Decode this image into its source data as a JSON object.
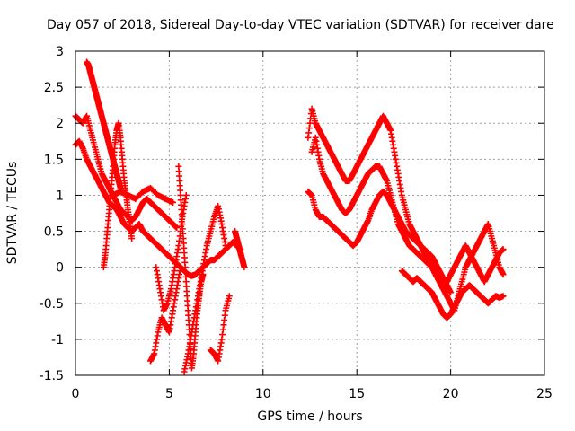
{
  "chart_data": {
    "type": "scatter",
    "title": "Day 057 of 2018, Sidereal Day-to-day VTEC variation (SDTVAR) for receiver dare",
    "xlabel": "GPS time / hours",
    "ylabel": "SDTVAR / TECUs",
    "xlim": [
      0,
      25
    ],
    "ylim": [
      -1.5,
      3
    ],
    "xticks": [
      "0",
      "5",
      "10",
      "15",
      "20",
      "25"
    ],
    "yticks": [
      "-1.5",
      "-1",
      "-0.5",
      "0",
      "0.5",
      "1",
      "1.5",
      "2",
      "2.5",
      "3"
    ],
    "grid": true,
    "legend": "none",
    "marker": "+",
    "color": "#ff0000",
    "series": [
      {
        "x": [
          0.0,
          0.2,
          0.4,
          0.6,
          0.8,
          1.0,
          1.2,
          1.4,
          1.6,
          1.8,
          2.0,
          2.2,
          2.4,
          2.6,
          2.8,
          3.0,
          3.2,
          3.4,
          3.6,
          3.8,
          4.0,
          4.2,
          4.4,
          4.6,
          4.8,
          5.0,
          5.2,
          5.4,
          5.6,
          5.8,
          6.0,
          6.2,
          6.4,
          6.6,
          6.8,
          7.0,
          7.2,
          7.4,
          7.6,
          7.8,
          8.0,
          8.2,
          8.4,
          8.6,
          8.8
        ],
        "y": [
          1.7,
          1.75,
          1.65,
          1.5,
          1.4,
          1.3,
          1.2,
          1.1,
          1.0,
          0.9,
          0.85,
          0.8,
          0.7,
          0.6,
          0.55,
          0.5,
          0.55,
          0.6,
          0.5,
          0.45,
          0.4,
          0.35,
          0.3,
          0.25,
          0.2,
          0.15,
          0.1,
          0.05,
          0.0,
          -0.05,
          -0.1,
          -0.12,
          -0.1,
          -0.05,
          0.0,
          0.05,
          0.1,
          0.1,
          0.15,
          0.2,
          0.25,
          0.3,
          0.35,
          0.3,
          0.25
        ]
      },
      {
        "x": [
          0.0,
          0.2,
          0.4,
          0.6,
          0.8,
          1.0,
          1.2,
          1.4,
          1.6,
          1.8,
          2.0,
          2.2,
          2.4,
          2.6,
          2.8,
          3.0,
          3.2,
          3.4,
          3.6,
          3.8,
          4.0,
          4.2,
          4.4,
          4.6,
          4.8,
          5.0,
          5.2,
          5.4
        ],
        "y": [
          2.1,
          2.05,
          2.0,
          2.1,
          1.9,
          1.7,
          1.5,
          1.3,
          1.2,
          1.1,
          1.0,
          0.9,
          0.8,
          0.75,
          0.7,
          0.65,
          0.7,
          0.8,
          0.9,
          0.95,
          0.9,
          0.85,
          0.8,
          0.75,
          0.7,
          0.65,
          0.6,
          0.55
        ]
      },
      {
        "x": [
          0.6,
          0.7,
          0.8,
          0.9,
          1.0,
          1.1,
          1.2,
          1.3,
          1.4,
          1.5,
          1.6,
          1.7,
          1.8,
          1.9,
          2.0,
          2.1,
          2.2,
          2.3,
          2.4
        ],
        "y": [
          2.85,
          2.8,
          2.7,
          2.6,
          2.5,
          2.4,
          2.3,
          2.2,
          2.1,
          2.0,
          1.9,
          1.8,
          1.7,
          1.6,
          1.5,
          1.4,
          1.3,
          1.2,
          1.1
        ]
      },
      {
        "x": [
          1.5,
          1.6,
          1.7,
          1.8,
          1.9,
          2.0,
          2.1,
          2.2,
          2.3,
          2.4,
          2.5,
          2.6,
          2.7,
          2.8,
          2.9,
          3.0
        ],
        "y": [
          0.0,
          0.2,
          0.5,
          0.8,
          1.1,
          1.4,
          1.7,
          1.9,
          2.0,
          1.8,
          1.5,
          1.2,
          1.0,
          0.8,
          0.6,
          0.4
        ]
      },
      {
        "x": [
          2.0,
          2.4,
          2.8,
          3.2,
          3.6,
          4.0,
          4.4,
          4.8,
          5.2
        ],
        "y": [
          1.0,
          1.05,
          1.0,
          0.95,
          1.05,
          1.1,
          1.0,
          0.95,
          0.9
        ]
      },
      {
        "x": [
          4.0,
          4.2,
          4.4,
          4.6,
          4.8,
          5.0,
          5.2,
          5.4,
          5.6
        ],
        "y": [
          -1.3,
          -1.2,
          -0.9,
          -0.7,
          -0.8,
          -0.9,
          -0.6,
          -0.3,
          0.0
        ]
      },
      {
        "x": [
          4.3,
          4.5,
          4.7,
          4.9,
          5.1,
          5.3,
          5.5,
          5.7,
          5.9
        ],
        "y": [
          0.0,
          -0.3,
          -0.6,
          -0.5,
          -0.3,
          0.0,
          0.3,
          0.7,
          1.0
        ]
      },
      {
        "x": [
          5.5,
          5.6,
          5.7,
          5.8,
          5.9,
          6.0,
          6.1,
          6.2,
          6.3,
          6.4,
          6.5,
          6.6,
          6.7,
          6.8
        ],
        "y": [
          1.4,
          1.0,
          0.6,
          0.2,
          -0.2,
          -0.6,
          -1.0,
          -1.4,
          -1.2,
          -0.9,
          -0.6,
          -0.4,
          -0.2,
          -0.1
        ]
      },
      {
        "x": [
          5.8,
          6.0,
          6.2,
          6.4,
          6.6,
          6.8,
          7.0,
          7.2,
          7.4,
          7.6,
          7.8,
          8.0
        ],
        "y": [
          -1.45,
          -1.2,
          -0.9,
          -0.6,
          -0.3,
          0.0,
          0.3,
          0.5,
          0.7,
          0.85,
          0.6,
          0.3
        ]
      },
      {
        "x": [
          7.2,
          7.4,
          7.6,
          7.8,
          8.0,
          8.2
        ],
        "y": [
          -1.15,
          -1.2,
          -1.3,
          -1.0,
          -0.6,
          -0.4
        ]
      },
      {
        "x": [
          8.5,
          8.6,
          8.7,
          8.8,
          8.9,
          9.0
        ],
        "y": [
          0.5,
          0.4,
          0.3,
          0.2,
          0.1,
          0.0
        ]
      },
      {
        "x": [
          12.4,
          12.6,
          12.8,
          13.0,
          13.2,
          13.4,
          13.6,
          13.8,
          14.0,
          14.2,
          14.4,
          14.6,
          14.8,
          15.0,
          15.2,
          15.4,
          15.6,
          15.8,
          16.0,
          16.2,
          16.4,
          16.6,
          16.8,
          17.0,
          17.2,
          17.4,
          17.6,
          17.8,
          18.0,
          18.2,
          18.4,
          18.6,
          18.8,
          19.0,
          19.2,
          19.4,
          19.6,
          19.8,
          20.0,
          20.2,
          20.4,
          20.6,
          20.8,
          21.0,
          21.2,
          21.4,
          21.6,
          21.8,
          22.0,
          22.2,
          22.4,
          22.6,
          22.8
        ],
        "y": [
          1.8,
          2.2,
          2.0,
          1.9,
          1.8,
          1.7,
          1.6,
          1.5,
          1.4,
          1.3,
          1.2,
          1.2,
          1.3,
          1.4,
          1.5,
          1.6,
          1.7,
          1.8,
          1.9,
          2.0,
          2.1,
          2.0,
          1.9,
          1.6,
          1.3,
          1.0,
          0.8,
          0.6,
          0.5,
          0.4,
          0.3,
          0.2,
          0.1,
          0.0,
          -0.1,
          -0.2,
          -0.3,
          -0.4,
          -0.5,
          -0.6,
          -0.4,
          -0.2,
          0.0,
          0.1,
          0.2,
          0.3,
          0.4,
          0.5,
          0.6,
          0.4,
          0.2,
          0.0,
          -0.1
        ]
      },
      {
        "x": [
          12.6,
          12.8,
          13.0,
          13.2,
          13.4,
          13.6,
          13.8,
          14.0,
          14.2,
          14.4,
          14.6,
          14.8,
          15.0,
          15.2,
          15.4,
          15.6,
          15.8,
          16.0,
          16.2,
          16.4,
          16.6,
          16.8,
          17.0,
          17.2,
          17.4,
          17.6,
          17.8,
          18.0,
          18.2,
          18.4,
          18.6,
          18.8,
          19.0,
          19.2,
          19.4,
          19.6,
          19.8,
          20.0,
          20.2,
          20.4,
          20.6,
          20.8,
          21.0,
          21.2,
          21.4,
          21.6,
          21.8,
          22.0,
          22.2,
          22.4,
          22.6,
          22.8
        ],
        "y": [
          1.6,
          1.8,
          1.5,
          1.3,
          1.2,
          1.1,
          1.0,
          0.9,
          0.8,
          0.75,
          0.8,
          0.9,
          1.0,
          1.1,
          1.2,
          1.3,
          1.35,
          1.4,
          1.4,
          1.3,
          1.2,
          1.0,
          0.8,
          0.6,
          0.5,
          0.4,
          0.3,
          0.25,
          0.2,
          0.15,
          0.1,
          0.05,
          0.0,
          -0.1,
          -0.2,
          -0.3,
          -0.2,
          -0.1,
          0.0,
          0.1,
          0.2,
          0.3,
          0.2,
          0.1,
          0.0,
          -0.1,
          -0.2,
          -0.1,
          0.0,
          0.1,
          0.2,
          0.25
        ]
      },
      {
        "x": [
          12.4,
          12.6,
          12.8,
          13.0,
          13.2,
          13.4,
          13.6,
          13.8,
          14.0,
          14.2,
          14.4,
          14.6,
          14.8,
          15.0,
          15.2,
          15.4,
          15.6,
          15.8,
          16.0,
          16.2,
          16.4,
          16.6,
          16.8,
          17.0,
          17.2,
          17.4,
          17.6,
          17.8,
          18.0,
          18.2,
          18.4,
          18.6,
          18.8,
          19.0,
          19.2,
          19.4,
          19.6,
          19.8,
          20.0
        ],
        "y": [
          1.05,
          1.0,
          0.8,
          0.7,
          0.7,
          0.65,
          0.6,
          0.55,
          0.5,
          0.45,
          0.4,
          0.35,
          0.3,
          0.35,
          0.45,
          0.55,
          0.65,
          0.8,
          0.9,
          1.0,
          1.05,
          1.0,
          0.9,
          0.8,
          0.7,
          0.6,
          0.5,
          0.45,
          0.4,
          0.35,
          0.3,
          0.25,
          0.2,
          0.15,
          0.05,
          -0.05,
          -0.15,
          -0.25,
          -0.35
        ]
      },
      {
        "x": [
          17.4,
          17.6,
          17.8,
          18.0,
          18.2,
          18.4,
          18.6,
          18.8,
          19.0,
          19.2,
          19.4,
          19.6,
          19.8,
          20.0,
          20.2,
          20.4,
          20.6,
          20.8,
          21.0,
          21.2,
          21.4,
          21.6,
          21.8,
          22.0,
          22.2,
          22.4,
          22.6,
          22.8
        ],
        "y": [
          -0.05,
          -0.1,
          -0.15,
          -0.2,
          -0.15,
          -0.2,
          -0.25,
          -0.3,
          -0.35,
          -0.45,
          -0.55,
          -0.65,
          -0.7,
          -0.65,
          -0.55,
          -0.45,
          -0.35,
          -0.3,
          -0.25,
          -0.3,
          -0.35,
          -0.4,
          -0.45,
          -0.5,
          -0.45,
          -0.4,
          -0.42,
          -0.4
        ]
      }
    ]
  }
}
